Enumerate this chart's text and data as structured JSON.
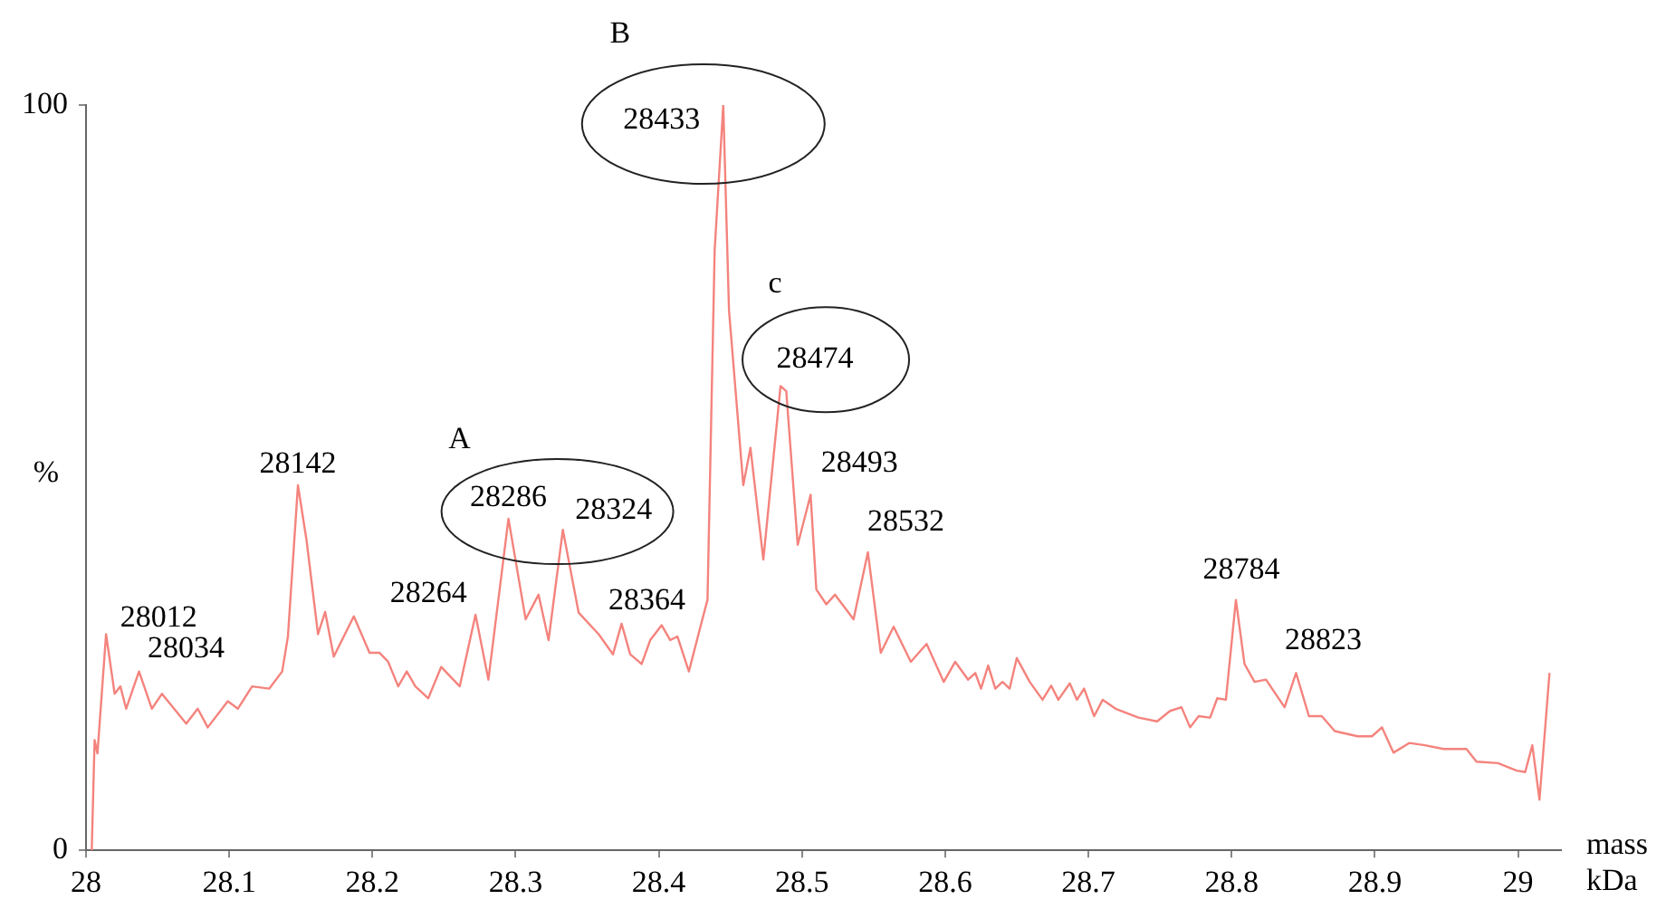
{
  "chart_data": {
    "type": "line",
    "xlabel": "mass kDa",
    "ylabel": "%",
    "color": "#f4837d",
    "marker": "none",
    "line_style": "solid",
    "grid": false,
    "legend": false,
    "xlim": [
      28,
      29.03
    ],
    "xticks": [
      28,
      28.1,
      28.2,
      28.3,
      28.4,
      28.5,
      28.6,
      28.7,
      28.8,
      28.9,
      29
    ],
    "ylim": [
      0,
      100
    ],
    "yticks": [
      0,
      100
    ],
    "x": [
      28.004,
      28.006,
      28.008,
      28.014,
      28.02,
      28.024,
      28.028,
      28.037,
      28.046,
      28.053,
      28.07,
      28.078,
      28.085,
      28.099,
      28.106,
      28.116,
      28.128,
      28.137,
      28.141,
      28.148,
      28.154,
      28.162,
      28.167,
      28.173,
      28.187,
      28.198,
      28.205,
      28.211,
      28.218,
      28.224,
      28.23,
      28.239,
      28.248,
      28.261,
      28.272,
      28.281,
      28.295,
      28.307,
      28.316,
      28.323,
      28.333,
      28.344,
      28.358,
      28.368,
      28.374,
      28.38,
      28.388,
      28.394,
      28.402,
      28.408,
      28.413,
      28.421,
      28.43,
      28.434,
      28.439,
      28.445,
      28.449,
      28.459,
      28.464,
      28.473,
      28.485,
      28.489,
      28.497,
      28.506,
      28.51,
      28.517,
      28.523,
      28.536,
      28.546,
      28.555,
      28.564,
      28.576,
      28.587,
      28.599,
      28.607,
      28.616,
      28.621,
      28.625,
      28.63,
      28.635,
      28.64,
      28.645,
      28.65,
      28.659,
      28.668,
      28.674,
      28.679,
      28.687,
      28.692,
      28.697,
      28.704,
      28.71,
      28.719,
      28.735,
      28.748,
      28.757,
      28.765,
      28.771,
      28.777,
      28.785,
      28.79,
      28.796,
      28.803,
      28.809,
      28.816,
      28.824,
      28.837,
      28.845,
      28.854,
      28.863,
      28.872,
      28.888,
      28.898,
      28.905,
      28.913,
      28.924,
      28.935,
      28.948,
      28.964,
      28.971,
      28.986,
      28.999,
      29.005,
      29.01,
      29.015,
      29.022
    ],
    "values": [
      0,
      14.8,
      13,
      29,
      21,
      22,
      19,
      24,
      19,
      21,
      17,
      19,
      16.5,
      20,
      19,
      22,
      21.7,
      24,
      28.7,
      49,
      41.6,
      29,
      32,
      26,
      31.4,
      26.5,
      26.5,
      25.3,
      22,
      24,
      22,
      20.4,
      24.6,
      22,
      31.6,
      22.9,
      44.5,
      31,
      34.3,
      28.2,
      43,
      31.9,
      29,
      26.3,
      30.4,
      26.3,
      25,
      28.2,
      30.2,
      28.2,
      28.7,
      24,
      30.7,
      33.6,
      80.5,
      100,
      72.5,
      49,
      54,
      39,
      62.3,
      61.6,
      41,
      47.7,
      35,
      33,
      34.3,
      31,
      40,
      26.5,
      30,
      25.3,
      27.7,
      22.6,
      25.3,
      22.9,
      23.8,
      21.7,
      24.8,
      21.7,
      22.6,
      21.7,
      25.8,
      22.6,
      20.2,
      22.1,
      20.2,
      22.4,
      20.2,
      21.7,
      18,
      20.2,
      19,
      17.8,
      17.3,
      18.7,
      19.2,
      16.5,
      18,
      17.8,
      20.4,
      20.2,
      33.6,
      25,
      22.6,
      22.9,
      19.2,
      23.8,
      18,
      18,
      16,
      15.3,
      15.3,
      16.5,
      13.1,
      14.4,
      14.1,
      13.6,
      13.6,
      11.9,
      11.7,
      10.7,
      10.5,
      14.1,
      6.8,
      23.8
    ],
    "annotations": [
      {
        "text": "28012",
        "x": 28.014,
        "y": 29
      },
      {
        "text": "28034",
        "x": 28.037,
        "y": 24
      },
      {
        "text": "28142",
        "x": 28.148,
        "y": 49
      },
      {
        "text": "28264",
        "x": 28.272,
        "y": 31.6
      },
      {
        "text": "28286",
        "x": 28.295,
        "y": 44.5
      },
      {
        "text": "28324",
        "x": 28.333,
        "y": 43
      },
      {
        "text": "28364",
        "x": 28.374,
        "y": 30.4
      },
      {
        "text": "28433",
        "x": 28.445,
        "y": 100
      },
      {
        "text": "28474",
        "x": 28.485,
        "y": 62.3
      },
      {
        "text": "28493",
        "x": 28.506,
        "y": 47.7
      },
      {
        "text": "28532",
        "x": 28.546,
        "y": 40
      },
      {
        "text": "28784",
        "x": 28.803,
        "y": 33.6
      },
      {
        "text": "28823",
        "x": 28.845,
        "y": 23.8
      },
      "A",
      "B",
      "c"
    ]
  }
}
